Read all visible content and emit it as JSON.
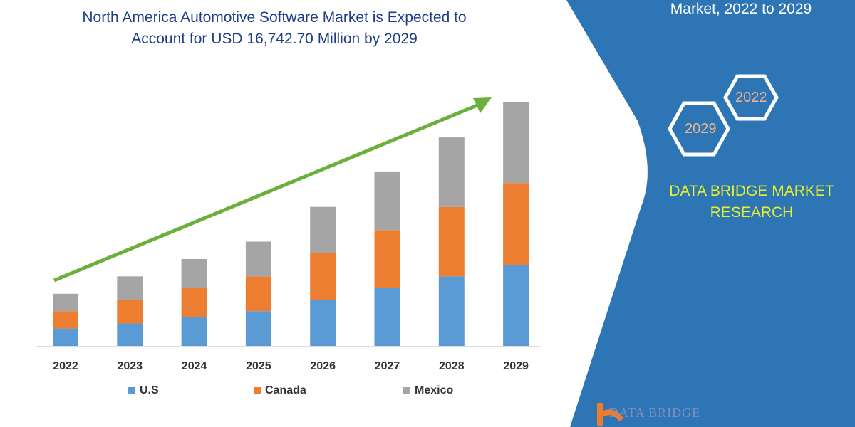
{
  "header": {
    "title_line1": "North America Automotive Software Market is Expected to",
    "title_line2": "Account for USD 16,742.70 Million by 2029"
  },
  "panel": {
    "title": "Market, 2022 to 2029",
    "hex_a": "2022",
    "hex_b": "2029",
    "brand_line1": "DATA BRIDGE MARKET",
    "brand_line2": "RESEARCH",
    "logo_text": "DATA BRIDGE",
    "color": "#2e75b6",
    "brand_color": "#e8f02a"
  },
  "chart_data": {
    "type": "bar",
    "stacked": true,
    "categories": [
      "2022",
      "2023",
      "2024",
      "2025",
      "2026",
      "2027",
      "2028",
      "2029"
    ],
    "series": [
      {
        "name": "U.S",
        "color": "#5b9bd5",
        "values": [
          24,
          31,
          40,
          48,
          63,
          80,
          96,
          112
        ]
      },
      {
        "name": "Canada",
        "color": "#ed7d31",
        "values": [
          24,
          32,
          40,
          48,
          65,
          80,
          96,
          113
        ]
      },
      {
        "name": "Mexico",
        "color": "#a5a5a5",
        "values": [
          24,
          33,
          40,
          48,
          64,
          81,
          96,
          112
        ]
      }
    ],
    "ylim": [
      0,
      350
    ],
    "grid": false,
    "legend": "bottom",
    "trend_arrow_color": "#6ab03a"
  }
}
